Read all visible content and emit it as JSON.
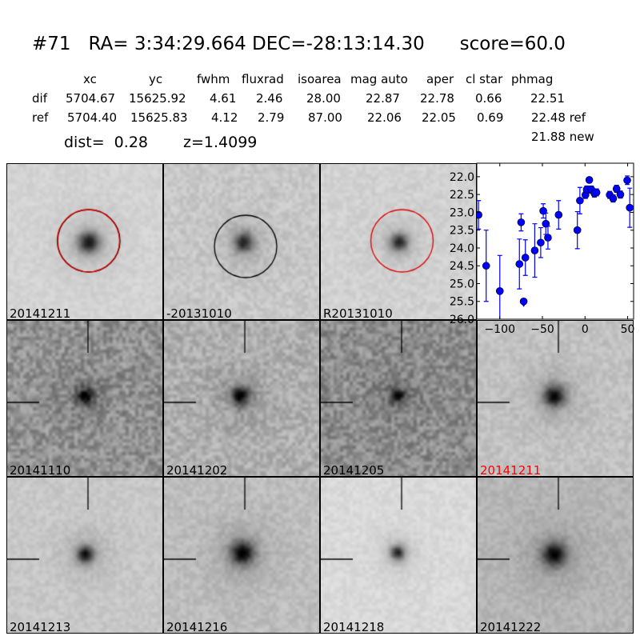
{
  "header": {
    "title": "#71   RA= 3:34:29.664 DEC=-28:13:14.30      score=60.0",
    "columns": [
      "xc",
      "yc",
      "fwhm",
      "fluxrad",
      "isoarea",
      "mag auto",
      "aper",
      "cl star",
      "phmag"
    ],
    "rows": [
      {
        "label": "dif",
        "values": [
          "5704.67",
          "15625.92",
          "4.61",
          "2.46",
          "28.00",
          "22.87",
          "22.78",
          "0.66",
          "22.51"
        ]
      },
      {
        "label": "ref",
        "values": [
          "5704.40",
          "15625.83",
          "4.12",
          "2.79",
          "87.00",
          "22.06",
          "22.05",
          "0.69",
          "22.48 ref"
        ]
      }
    ],
    "extra_phmag": "21.88 new",
    "dist": "dist=  0.28",
    "z": "z=1.4099"
  },
  "stamps": [
    {
      "label": "20141211",
      "circle": "red-black"
    },
    {
      "label": "-20131010",
      "circle": "black"
    },
    {
      "label": "R20131010",
      "circle": "red"
    },
    {
      "label": "20141110"
    },
    {
      "label": "20141202"
    },
    {
      "label": "20141205"
    },
    {
      "label": "20141211",
      "highlight": "#ff0000"
    },
    {
      "label": "20141213"
    },
    {
      "label": "20141216"
    },
    {
      "label": "20141218"
    },
    {
      "label": "20141222"
    }
  ],
  "chart_data": {
    "type": "scatter",
    "marker_color": "#0000ff",
    "xlim": [
      -127,
      57
    ],
    "ylim": [
      26.0,
      21.62
    ],
    "y_inverted": true,
    "xticks": [
      -100,
      -50,
      0,
      50
    ],
    "yticks": [
      22.0,
      22.5,
      23.0,
      23.5,
      24.0,
      24.5,
      25.0,
      25.5,
      26.0
    ],
    "points": [
      {
        "x": -125,
        "y": 23.07,
        "err": 0.4
      },
      {
        "x": -116,
        "y": 24.5,
        "err": 1.0
      },
      {
        "x": -100,
        "y": 25.21,
        "err": 1.0
      },
      {
        "x": -77,
        "y": 24.45,
        "err": 0.7
      },
      {
        "x": -75,
        "y": 23.28,
        "err": 0.24
      },
      {
        "x": -70,
        "y": 24.27,
        "err": 0.5
      },
      {
        "x": -59,
        "y": 24.07,
        "err": 0.75
      },
      {
        "x": -52,
        "y": 23.85,
        "err": 0.42
      },
      {
        "x": -49,
        "y": 22.96,
        "err": 0.2
      },
      {
        "x": -46,
        "y": 23.32,
        "err": 0.3
      },
      {
        "x": -43.5,
        "y": 23.71,
        "err": 0.32
      },
      {
        "x": -31,
        "y": 23.07,
        "err": 0.4
      },
      {
        "x": -9,
        "y": 23.5,
        "err": 0.52
      },
      {
        "x": -6,
        "y": 22.67,
        "err": 0.37
      },
      {
        "x": 0.5,
        "y": 22.51,
        "err": 0.1
      },
      {
        "x": 2,
        "y": 22.36,
        "err": 0.1
      },
      {
        "x": 5,
        "y": 22.09,
        "err": 0.06
      },
      {
        "x": 7.5,
        "y": 22.36,
        "err": 0.1
      },
      {
        "x": 11,
        "y": 22.47,
        "err": 0.1
      },
      {
        "x": 13.5,
        "y": 22.44,
        "err": 0.1
      },
      {
        "x": 29,
        "y": 22.51,
        "err": 0.1
      },
      {
        "x": 33,
        "y": 22.61,
        "err": 0.1
      },
      {
        "x": 37,
        "y": 22.34,
        "err": 0.1
      },
      {
        "x": 41.5,
        "y": 22.5,
        "err": 0.1
      },
      {
        "x": 49.5,
        "y": 22.1,
        "err": 0.12
      },
      {
        "x": 52.5,
        "y": 22.87,
        "err": 0.55
      }
    ],
    "upper_limits": [
      {
        "x": -72,
        "y": 25.5
      }
    ]
  }
}
